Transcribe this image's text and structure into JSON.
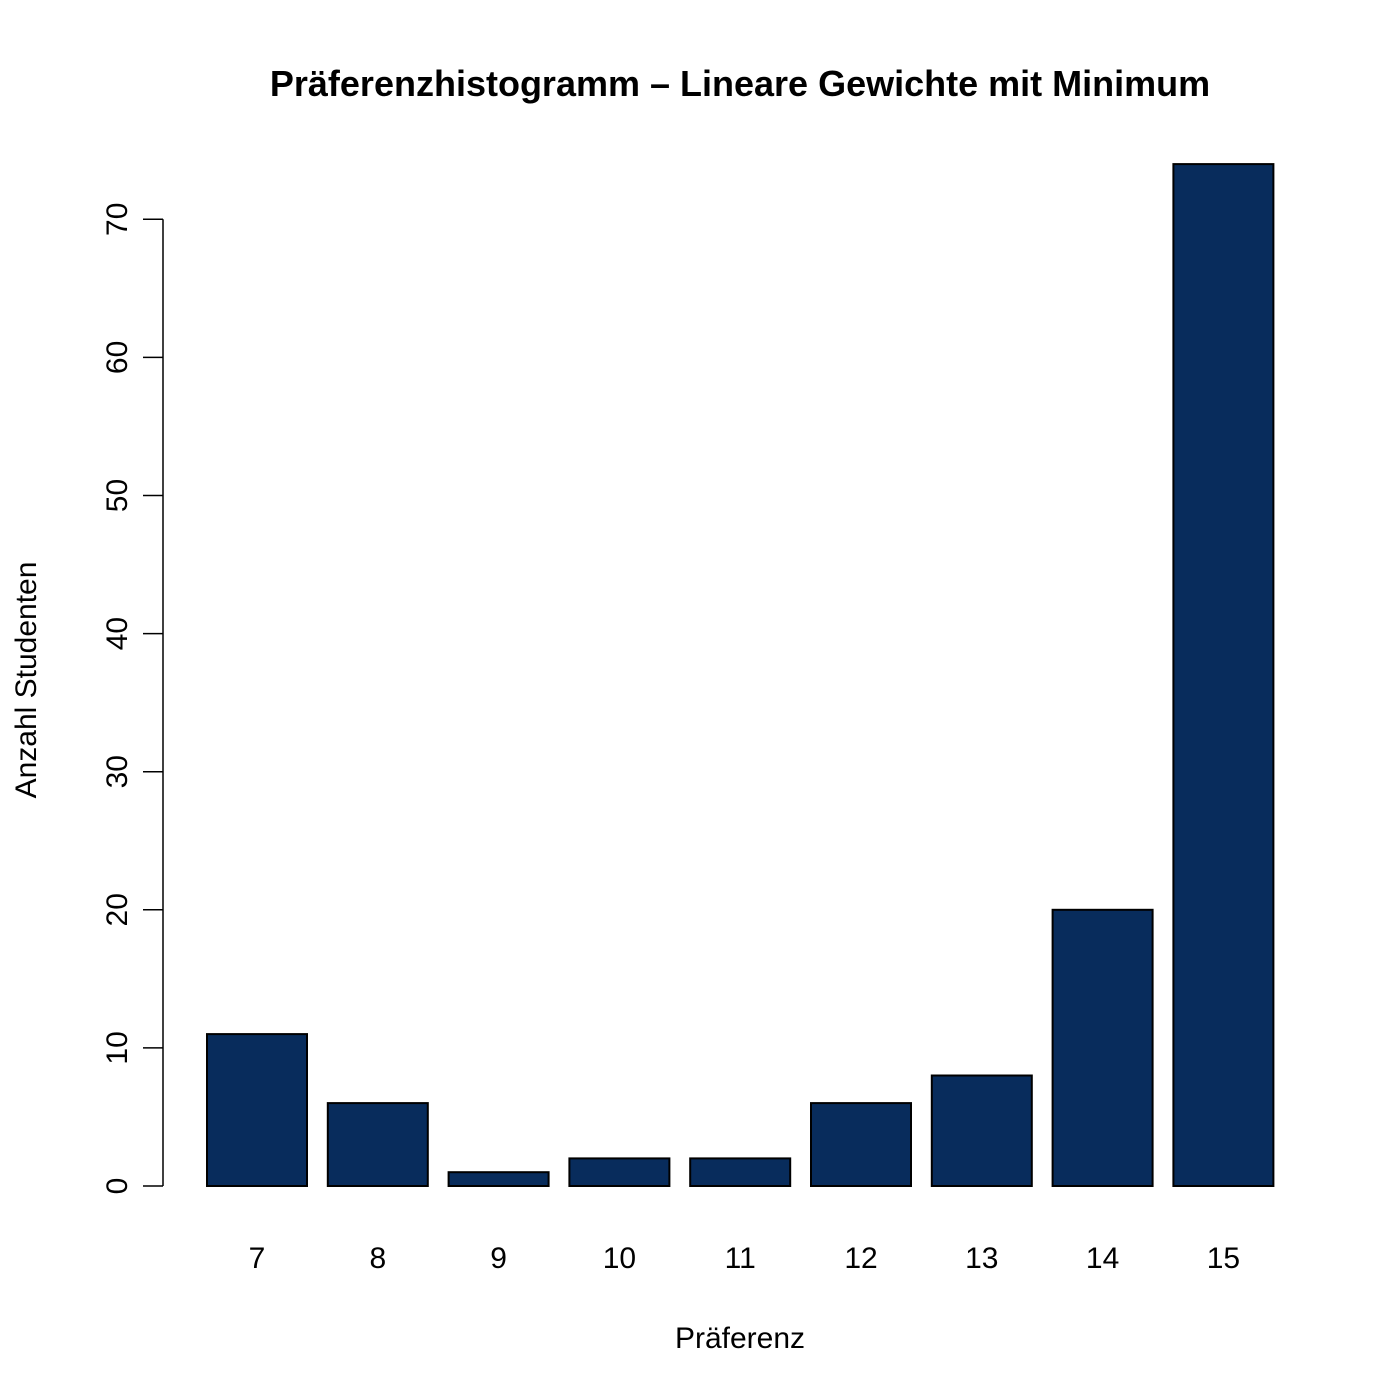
{
  "chart_data": {
    "type": "bar",
    "title": "Präferenzhistogramm – Lineare Gewichte mit Minimum",
    "xlabel": "Präferenz",
    "ylabel": "Anzahl Studenten",
    "categories": [
      "7",
      "8",
      "9",
      "10",
      "11",
      "12",
      "13",
      "14",
      "15"
    ],
    "values": [
      11,
      6,
      1,
      2,
      2,
      6,
      8,
      20,
      74
    ],
    "ylim": [
      0,
      74
    ],
    "yticks": [
      0,
      10,
      20,
      30,
      40,
      50,
      60,
      70
    ],
    "ytick_labels": [
      "0",
      "10",
      "20",
      "30",
      "40",
      "50",
      "60",
      "70"
    ],
    "bar_color": "#082c5c",
    "bar_edge_color": "#000000",
    "grid": false
  }
}
